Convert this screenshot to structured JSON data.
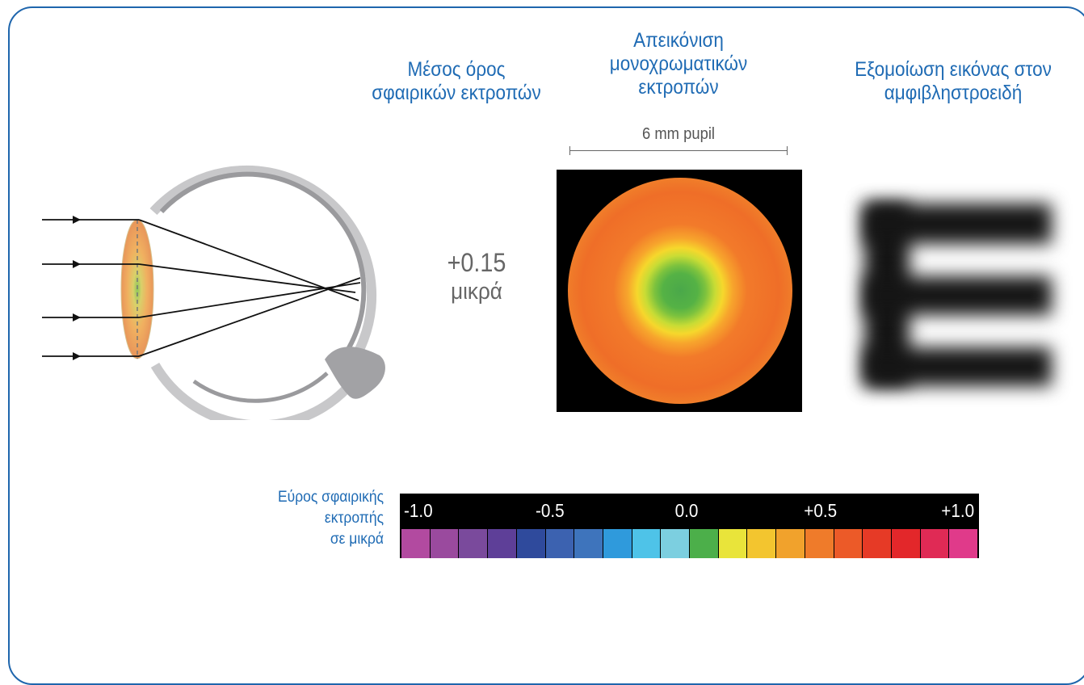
{
  "headings": {
    "mean": [
      "Μέσος όρος",
      "σφαιρικών εκτροπών"
    ],
    "map": [
      "Απεικόνιση",
      "μονοχρωματικών",
      "εκτροπών"
    ],
    "simulation": [
      "Εξομοίωση εικόνας στον",
      "αμφιβληστροειδή"
    ]
  },
  "pupil_label": "6 mm pupil",
  "mean_value": {
    "number": "+0.15",
    "unit": "μικρά"
  },
  "colorbar": {
    "title": [
      "Εύρος σφαιρικής",
      "εκτροπής",
      "σε μικρά"
    ],
    "ticks": [
      "-1.0",
      "-0.5",
      "0.0",
      "+0.5",
      "+1.0"
    ],
    "colors": [
      "#b24aa0",
      "#9a4a9e",
      "#7a4a9c",
      "#5e3f98",
      "#2f4a9c",
      "#3c62b0",
      "#3e74bc",
      "#2f9adc",
      "#4ec3e8",
      "#7ccfe0",
      "#4caf4a",
      "#e9e43a",
      "#f3c52f",
      "#f1a22c",
      "#ef7b2a",
      "#ec5a28",
      "#e63a26",
      "#e3272a",
      "#e02a55",
      "#e03a8a"
    ]
  },
  "retinal_letter": "E",
  "colors": {
    "frame": "#1f66ad",
    "heading": "#1f6bb4",
    "value": "#666666"
  }
}
